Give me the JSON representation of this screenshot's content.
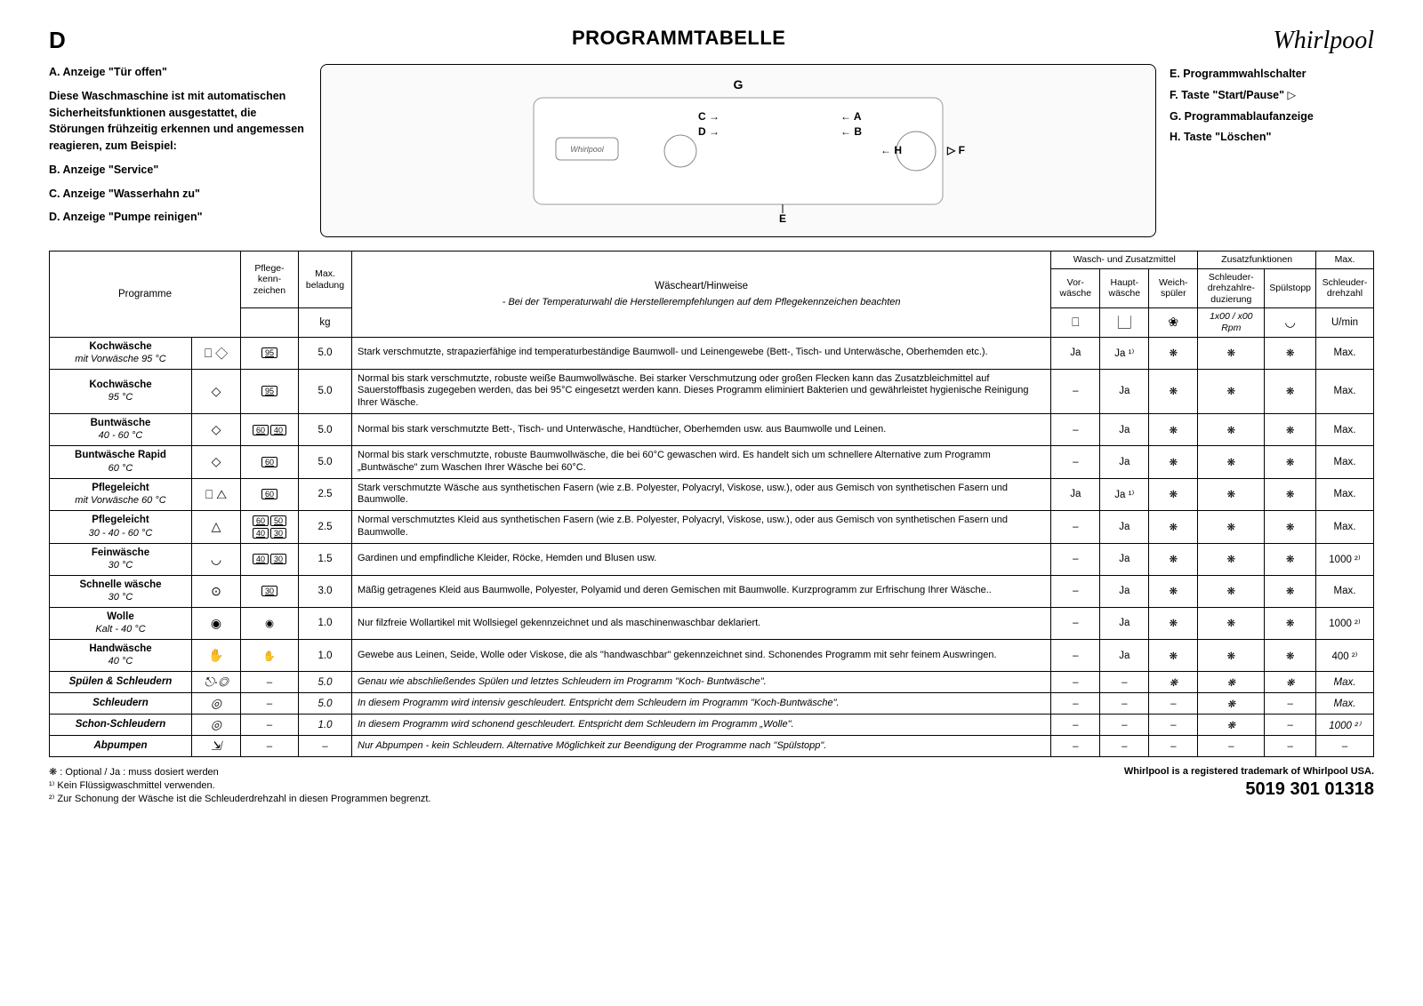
{
  "lang_letter": "D",
  "title": "PROGRAMMTABELLE",
  "logo": "Whirlpool",
  "left_notes": {
    "a": "A. Anzeige \"Tür offen\"",
    "intro": "Diese Waschmaschine ist mit automatischen Sicherheitsfunktionen ausgestattet, die Störungen frühzeitig erkennen und angemessen reagieren, zum Beispiel:",
    "b": "B. Anzeige \"Service\"",
    "c": "C. Anzeige \"Wasserhahn zu\"",
    "d": "D. Anzeige \"Pumpe reinigen\""
  },
  "right_notes": {
    "e": "E. Programmwahlschalter",
    "f": "F. Taste \"Start/Pause\"",
    "g": "G. Programmablaufanzeige",
    "h": "H. Taste \"Löschen\""
  },
  "diagram_labels": {
    "G": "G",
    "C": "C",
    "D": "D",
    "A": "A",
    "B": "B",
    "H": "H",
    "F": "F",
    "E": "E"
  },
  "table": {
    "head": {
      "programme": "Programme",
      "care": "Pflege-kenn-zeichen",
      "load": "Max. beladung",
      "load_unit": "kg",
      "hints_title": "Wäscheart/Hinweise",
      "hints_sub": "- Bei der Temperaturwahl die Herstellerempfehlungen auf dem Pflegekennzeichen beachten",
      "detergent_group": "Wasch- und Zusatzmittel",
      "options_group": "Zusatzfunktionen",
      "max_group": "Max.",
      "prewash": "Vor-wäsche",
      "mainwash": "Haupt-wäsche",
      "softener": "Weich-spüler",
      "spin_reduce": "Schleuder-drehzahlre-duzierung",
      "spin_reduce_sub": "1x00 / x00 Rpm",
      "rinse_hold": "Spülstopp",
      "max_spin": "Schleuder-drehzahl",
      "max_spin_unit": "U/min"
    },
    "rows": [
      {
        "name": "Kochwäsche",
        "sub": "mit Vorwäsche  95 °C",
        "icon": "⎕ ◇",
        "care": "95",
        "load": "5.0",
        "hint": "Stark verschmutzte, strapazierfähige ind temperaturbeständige Baumwoll- und Leinengewebe (Bett-, Tisch- und Unterwäsche, Oberhemden etc.).",
        "pre": "Ja",
        "main": "Ja ¹⁾",
        "soft": "❋",
        "sr": "❋",
        "rh": "❋",
        "spin": "Max.",
        "italic": false
      },
      {
        "name": "Kochwäsche",
        "sub": "95 °C",
        "icon": "◇",
        "care": "95",
        "load": "5.0",
        "hint": "Normal bis stark verschmutzte, robuste weiße Baumwollwäsche. Bei starker Verschmutzung oder großen Flecken kann das Zusatzbleichmittel auf Sauerstoffbasis zugegeben werden, das bei 95°C eingesetzt werden kann. Dieses Programm eliminiert Bakterien und gewährleistet hygienische Reinigung Ihrer Wäsche.",
        "pre": "–",
        "main": "Ja",
        "soft": "❋",
        "sr": "❋",
        "rh": "❋",
        "spin": "Max.",
        "italic": false
      },
      {
        "name": "Buntwäsche",
        "sub": "40 - 60 °C",
        "icon": "◇",
        "care": "60 40",
        "load": "5.0",
        "hint": "Normal bis stark verschmutzte Bett-, Tisch- und Unterwäsche, Handtücher, Oberhemden usw. aus Baumwolle und Leinen.",
        "pre": "–",
        "main": "Ja",
        "soft": "❋",
        "sr": "❋",
        "rh": "❋",
        "spin": "Max.",
        "italic": false
      },
      {
        "name": "Buntwäsche Rapid",
        "sub": "60 °C",
        "icon": "◇",
        "care": "60",
        "load": "5.0",
        "hint": "Normal bis stark verschmutzte, robuste Baumwollwäsche, die bei 60°C gewaschen wird. Es handelt sich um schnellere Alternative zum Programm „Buntwäsche\" zum Waschen Ihrer Wäsche bei 60°C.",
        "pre": "–",
        "main": "Ja",
        "soft": "❋",
        "sr": "❋",
        "rh": "❋",
        "spin": "Max.",
        "italic": false
      },
      {
        "name": "Pflegeleicht",
        "sub": "mit Vorwäsche  60 °C",
        "icon": "⎕ △",
        "care": "60",
        "load": "2.5",
        "hint": "Stark verschmutzte Wäsche aus synthetischen Fasern (wie z.B. Polyester, Polyacryl, Viskose, usw.), oder aus Gemisch von synthetischen Fasern und Baumwolle.",
        "pre": "Ja",
        "main": "Ja ¹⁾",
        "soft": "❋",
        "sr": "❋",
        "rh": "❋",
        "spin": "Max.",
        "italic": false
      },
      {
        "name": "Pflegeleicht",
        "sub": "30 - 40 - 60 °C",
        "icon": "△",
        "care": "60 50 40 30",
        "load": "2.5",
        "hint": "Normal verschmutztes Kleid aus synthetischen Fasern (wie z.B. Polyester, Polyacryl, Viskose, usw.), oder aus Gemisch von synthetischen Fasern und Baumwolle.",
        "pre": "–",
        "main": "Ja",
        "soft": "❋",
        "sr": "❋",
        "rh": "❋",
        "spin": "Max.",
        "italic": false
      },
      {
        "name": "Feinwäsche",
        "sub": "30 °C",
        "icon": "◡",
        "care": "40 30",
        "load": "1.5",
        "hint": "Gardinen und empfindliche Kleider, Röcke, Hemden und Blusen usw.",
        "pre": "–",
        "main": "Ja",
        "soft": "❋",
        "sr": "❋",
        "rh": "❋",
        "spin": "1000 ²⁾",
        "italic": false
      },
      {
        "name": "Schnelle wäsche",
        "sub": "30 °C",
        "icon": "⊙",
        "care": "30",
        "load": "3.0",
        "hint": "Mäßig getragenes Kleid aus Baumwolle, Polyester, Polyamid und deren Gemischen mit Baumwolle. Kurzprogramm zur Erfrischung Ihrer Wäsche..",
        "pre": "–",
        "main": "Ja",
        "soft": "❋",
        "sr": "❋",
        "rh": "❋",
        "spin": "Max.",
        "italic": false
      },
      {
        "name": "Wolle",
        "sub": "Kalt   - 40 °C",
        "icon": "◉",
        "care": "W",
        "load": "1.0",
        "hint": "Nur filzfreie Wollartikel mit Wollsiegel gekennzeichnet und als maschinenwaschbar deklariert.",
        "pre": "–",
        "main": "Ja",
        "soft": "❋",
        "sr": "❋",
        "rh": "❋",
        "spin": "1000 ²⁾",
        "italic": false
      },
      {
        "name": "Handwäsche",
        "sub": "40 °C",
        "icon": "✋",
        "care": "✋",
        "load": "1.0",
        "hint": "Gewebe aus Leinen, Seide, Wolle oder Viskose, die als \"handwaschbar\" gekennzeichnet sind. Schonendes Programm mit sehr feinem Auswringen.",
        "pre": "–",
        "main": "Ja",
        "soft": "❋",
        "sr": "❋",
        "rh": "❋",
        "spin": "400 ²⁾",
        "italic": false
      },
      {
        "name": "Spülen & Schleudern",
        "sub": "",
        "icon": "⎋·◎",
        "care": "–",
        "load": "5.0",
        "hint": "Genau wie abschließendes Spülen und letztes Schleudern im Programm \"Koch- Buntwäsche\".",
        "pre": "–",
        "main": "–",
        "soft": "❋",
        "sr": "❋",
        "rh": "❋",
        "spin": "Max.",
        "italic": true
      },
      {
        "name": "Schleudern",
        "sub": "",
        "icon": "◎",
        "care": "–",
        "load": "5.0",
        "hint": "In diesem Programm wird intensiv geschleudert. Entspricht dem Schleudern im Programm \"Koch-Buntwäsche\".",
        "pre": "–",
        "main": "–",
        "soft": "–",
        "sr": "❋",
        "rh": "–",
        "spin": "Max.",
        "italic": true
      },
      {
        "name": "Schon-Schleudern",
        "sub": "",
        "icon": "◎",
        "care": "–",
        "load": "1.0",
        "hint": "In diesem Programm wird schonend geschleudert. Entspricht dem Schleudern im Programm „Wolle\".",
        "pre": "–",
        "main": "–",
        "soft": "–",
        "sr": "❋",
        "rh": "–",
        "spin": "1000 ²⁾",
        "italic": true
      },
      {
        "name": "Abpumpen",
        "sub": "",
        "icon": "⇲",
        "care": "–",
        "load": "–",
        "hint": "Nur Abpumpen - kein Schleudern. Alternative Möglichkeit zur Beendigung der Programme nach \"Spülstopp\".",
        "pre": "–",
        "main": "–",
        "soft": "–",
        "sr": "–",
        "rh": "–",
        "spin": "–",
        "italic": true
      }
    ]
  },
  "footnotes": {
    "f1": "❋ : Optional / Ja : muss dosiert werden",
    "f2": "¹⁾   Kein Flüssigwaschmittel verwenden.",
    "f3": "²⁾   Zur Schonung der Wäsche ist die Schleuderdrehzahl in diesen Programmen begrenzt."
  },
  "footer": {
    "trademark": "Whirlpool is a registered trademark of Whirlpool USA.",
    "partno": "5019 301 01318"
  }
}
